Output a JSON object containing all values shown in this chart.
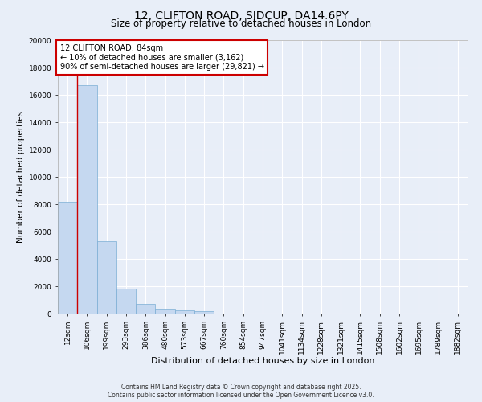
{
  "title_line1": "12, CLIFTON ROAD, SIDCUP, DA14 6PY",
  "title_line2": "Size of property relative to detached houses in London",
  "xlabel": "Distribution of detached houses by size in London",
  "ylabel": "Number of detached properties",
  "categories": [
    "12sqm",
    "106sqm",
    "199sqm",
    "293sqm",
    "386sqm",
    "480sqm",
    "573sqm",
    "667sqm",
    "760sqm",
    "854sqm",
    "947sqm",
    "1041sqm",
    "1134sqm",
    "1228sqm",
    "1321sqm",
    "1415sqm",
    "1508sqm",
    "1602sqm",
    "1695sqm",
    "1789sqm",
    "1882sqm"
  ],
  "values": [
    8200,
    16700,
    5300,
    1800,
    700,
    350,
    250,
    200,
    0,
    0,
    0,
    0,
    0,
    0,
    0,
    0,
    0,
    0,
    0,
    0,
    0
  ],
  "bar_color": "#c5d8f0",
  "bar_edge_color": "#7aadd4",
  "vline_color": "#cc0000",
  "vline_x": 1,
  "ylim": [
    0,
    20000
  ],
  "yticks": [
    0,
    2000,
    4000,
    6000,
    8000,
    10000,
    12000,
    14000,
    16000,
    18000,
    20000
  ],
  "annotation_box_text": "12 CLIFTON ROAD: 84sqm\n← 10% of detached houses are smaller (3,162)\n90% of semi-detached houses are larger (29,821) →",
  "annotation_box_color": "#cc0000",
  "annotation_box_fill": "#ffffff",
  "background_color": "#e8eef8",
  "grid_color": "#ffffff",
  "footer_text": "Contains HM Land Registry data © Crown copyright and database right 2025.\nContains public sector information licensed under the Open Government Licence v3.0.",
  "title_fontsize": 10,
  "subtitle_fontsize": 8.5,
  "ylabel_fontsize": 7.5,
  "xlabel_fontsize": 8,
  "tick_fontsize": 6.5,
  "annotation_fontsize": 7,
  "footer_fontsize": 5.5
}
